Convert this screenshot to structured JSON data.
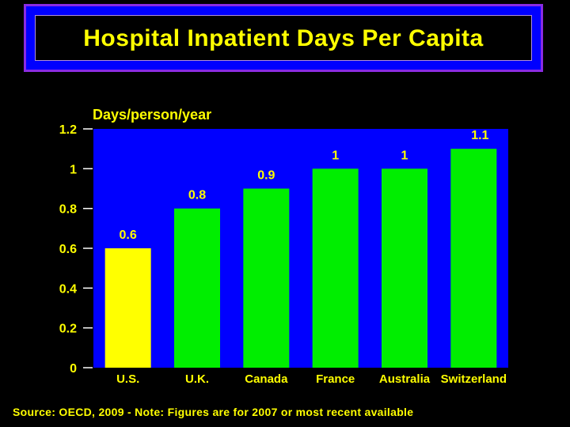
{
  "colors": {
    "background": "#000000",
    "title_frame": "#0000ff",
    "title_border": "#8a2be2",
    "plot_background": "#0000ff",
    "text": "#ffff00",
    "highlight_bar": "#ffff00",
    "bar": "#00ee00",
    "axis": "#ffffff"
  },
  "chart_data": {
    "type": "bar",
    "title": "Hospital Inpatient Days Per Capita",
    "ylabel": "Days/person/year",
    "xlabel": "",
    "categories": [
      "U.S.",
      "U.K.",
      "Canada",
      "France",
      "Australia",
      "Switzerland"
    ],
    "values": [
      0.6,
      0.8,
      0.9,
      1,
      1,
      1.1
    ],
    "value_labels": [
      "0.6",
      "0.8",
      "0.9",
      "1",
      "1",
      "1.1"
    ],
    "highlight_index": 0,
    "ylim": [
      0,
      1.2
    ],
    "yticks": [
      0,
      0.2,
      0.4,
      0.6,
      0.8,
      1,
      1.2
    ],
    "ytick_labels": [
      "0",
      "0.2",
      "0.4",
      "0.6",
      "0.8",
      "1",
      "1.2"
    ],
    "grid": false,
    "legend": "none"
  },
  "footer": {
    "source": "Source: OECD, 2009 - Note: Figures are for 2007 or most recent available"
  }
}
